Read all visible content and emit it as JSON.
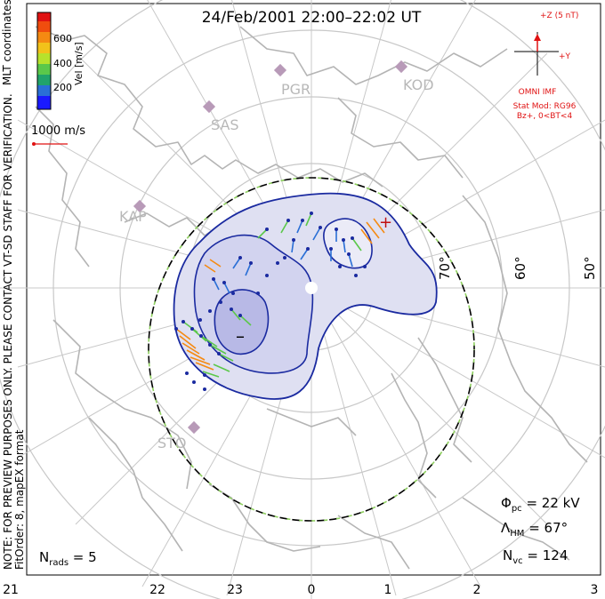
{
  "title": "24/Feb/2001 22:00–22:02 UT",
  "colorbar": {
    "label": "Vel [m/s]",
    "ticks": [
      "600",
      "400",
      "200"
    ],
    "colors": [
      "#1a1aff",
      "#2a6fd6",
      "#21a36b",
      "#5bc84a",
      "#b7e22c",
      "#f2c21a",
      "#f58a12",
      "#f04d0e",
      "#e01212"
    ]
  },
  "coord_label": "MLT coordinates",
  "scale_label": "1000 m/s",
  "preview_note": "NOTE: FOR PREVIEW PURPOSES ONLY. PLEASE CONTACT VT-SD STAFF FOR VERIFICATION.",
  "fit_order": "FitOrder: 8, mapEX format",
  "stations": [
    "PGR",
    "KOD",
    "SAS",
    "KAP",
    "STO"
  ],
  "latitude_labels": [
    "70°",
    "60°",
    "50°"
  ],
  "mlt_ticks": [
    "21",
    "22",
    "23",
    "0",
    "1",
    "2",
    "3"
  ],
  "imf": {
    "z_label": "+Z (5 nT)",
    "y_label": "+Y",
    "source": "OMNI IMF",
    "stat_mod": "Stat Mod: RG96",
    "condition": "Bz+, 0<BT<4"
  },
  "potential": {
    "prefix": "Φ",
    "sub": "pc",
    "value": " = 22 kV"
  },
  "hm_boundary": {
    "prefix": "Λ",
    "sub": "HM",
    "value": " = 67°"
  },
  "n_vc": {
    "prefix": "N",
    "sub": "vc",
    "value": " = 124"
  },
  "n_rads": {
    "prefix": "N",
    "sub": "rads",
    "value": " = 5"
  },
  "contour_markers": [
    "–",
    "+"
  ]
}
